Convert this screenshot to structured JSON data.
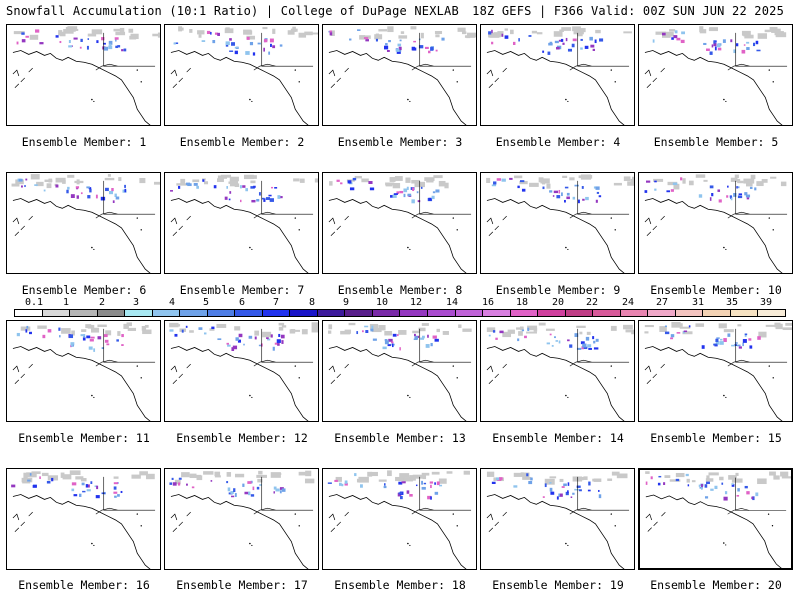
{
  "header": {
    "title_left": "Snowfall Accumulation (10:1 Ratio) | College of DuPage NEXLAB",
    "title_right": "18Z GEFS | F366 Valid: 00Z SUN JUN 22 2025"
  },
  "panels": [
    {
      "label": "Ensemble Member: 1"
    },
    {
      "label": "Ensemble Member: 2"
    },
    {
      "label": "Ensemble Member: 3"
    },
    {
      "label": "Ensemble Member: 4"
    },
    {
      "label": "Ensemble Member: 5"
    },
    {
      "label": "Ensemble Member: 6"
    },
    {
      "label": "Ensemble Member: 7"
    },
    {
      "label": "Ensemble Member: 8"
    },
    {
      "label": "Ensemble Member: 9"
    },
    {
      "label": "Ensemble Member: 10"
    },
    {
      "label": "Ensemble Member: 11"
    },
    {
      "label": "Ensemble Member: 12"
    },
    {
      "label": "Ensemble Member: 13"
    },
    {
      "label": "Ensemble Member: 14"
    },
    {
      "label": "Ensemble Member: 15"
    },
    {
      "label": "Ensemble Member: 16"
    },
    {
      "label": "Ensemble Member: 17"
    },
    {
      "label": "Ensemble Member: 18"
    },
    {
      "label": "Ensemble Member: 19"
    },
    {
      "label": "Ensemble Member: 20"
    }
  ],
  "colorbar": {
    "labels": [
      "0.1",
      "1",
      "2",
      "3",
      "4",
      "5",
      "6",
      "7",
      "8",
      "9",
      "10",
      "12",
      "14",
      "16",
      "18",
      "20",
      "22",
      "24",
      "27",
      "31",
      "35",
      "39"
    ],
    "colors": [
      "#ffffff",
      "#d9d9d9",
      "#b5b5b5",
      "#8c8c8c",
      "#a8e8f2",
      "#8fc4ee",
      "#6fa2e8",
      "#4f7ee6",
      "#3559e8",
      "#2233ee",
      "#1a14c8",
      "#3d1a9c",
      "#5a1f8c",
      "#7a2aa8",
      "#9437c0",
      "#aa4ccf",
      "#c063d8",
      "#d87fe0",
      "#e062c6",
      "#d0409e",
      "#c03e86",
      "#d85a9a",
      "#e884b0",
      "#f0a8c8",
      "#f4c4c0",
      "#f3d2b4",
      "#f6e2c2",
      "#f8ecd8"
    ]
  }
}
